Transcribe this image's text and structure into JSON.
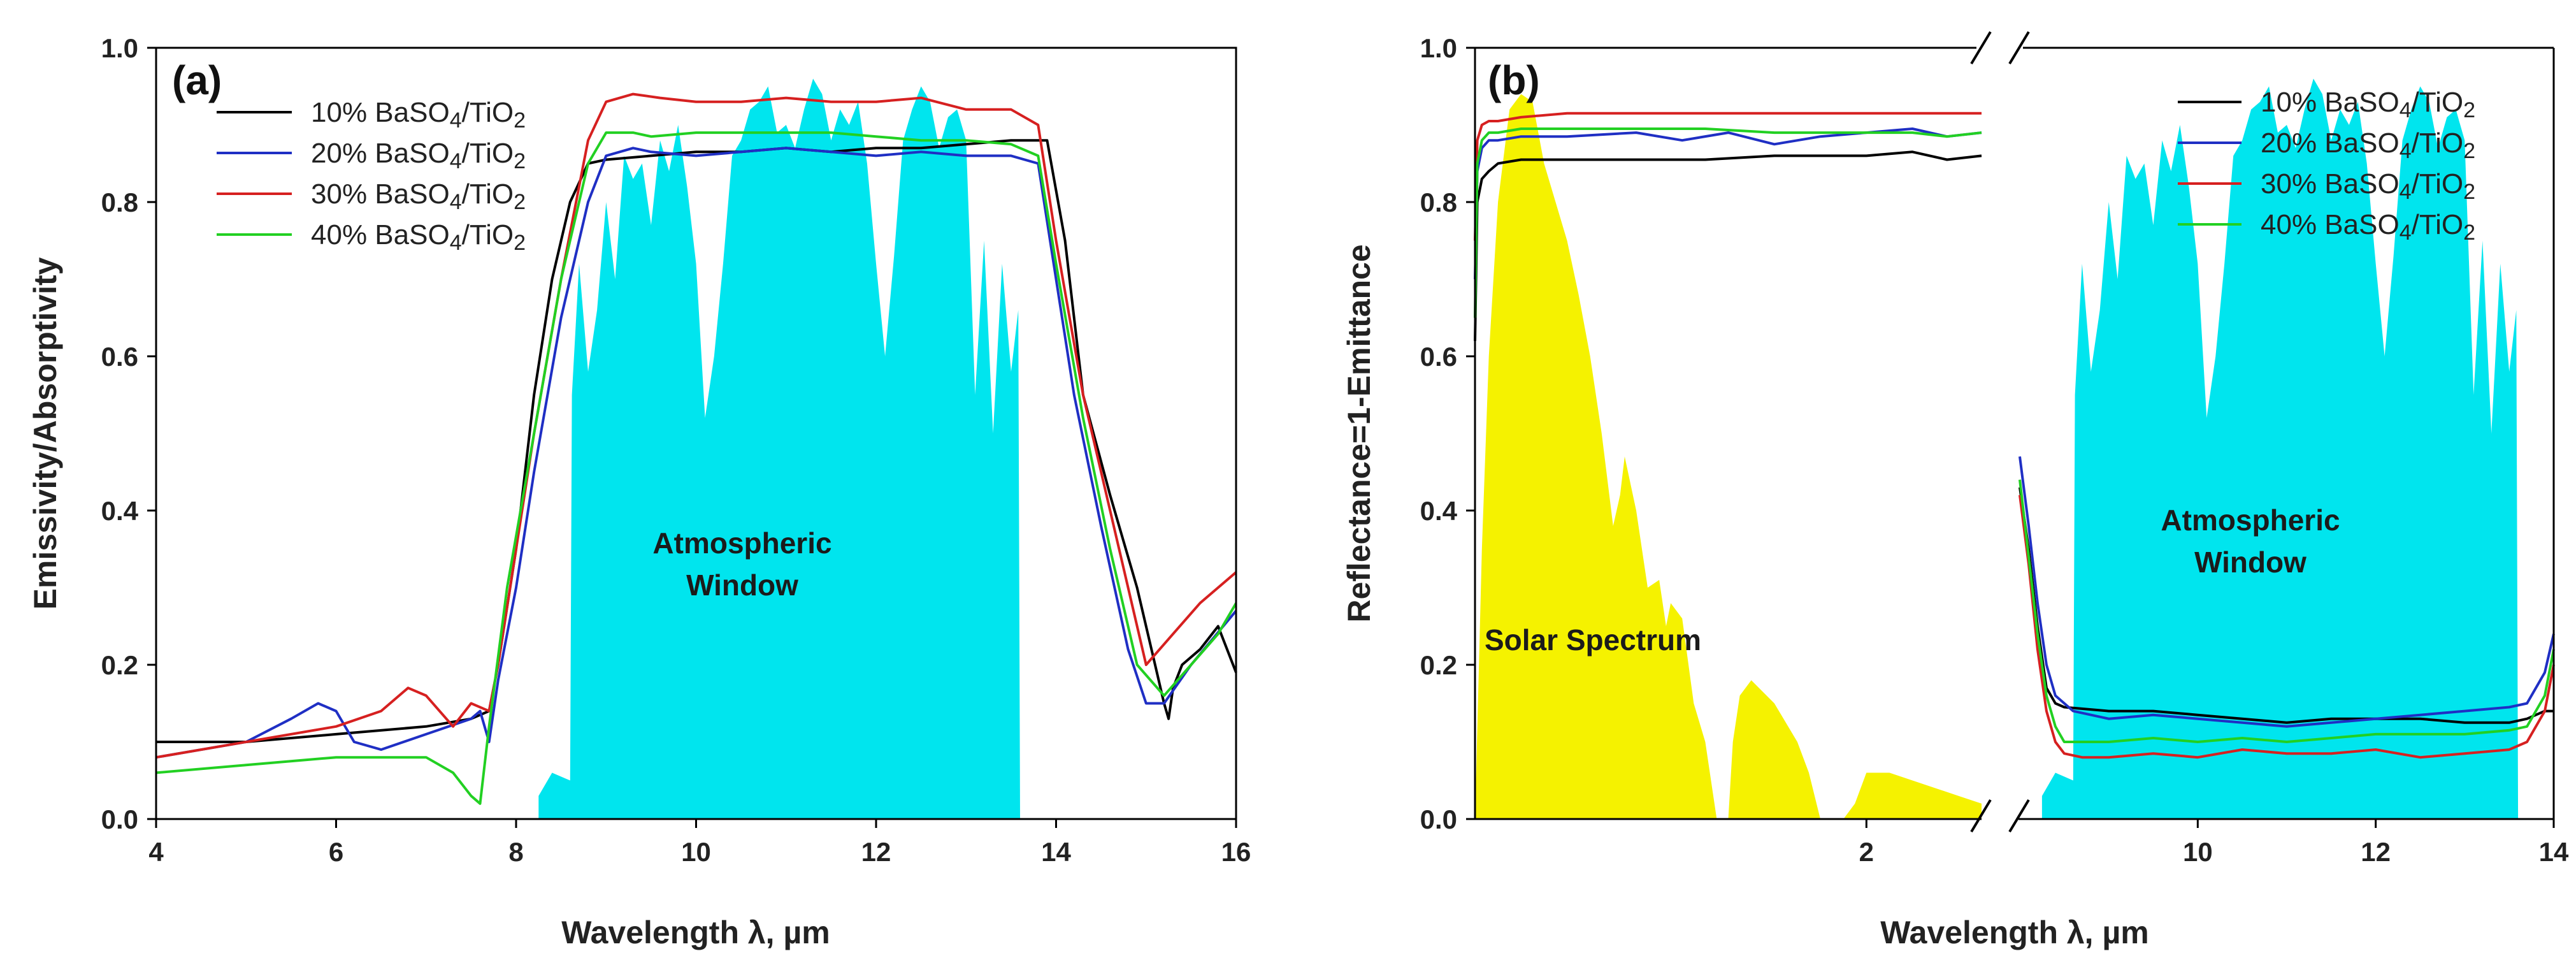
{
  "chart_data": [
    {
      "type": "line",
      "panel_label": "(a)",
      "xlabel": "Wavelength λ, µm",
      "ylabel": "Emissivity/Absorptivity",
      "xlim": [
        4,
        16
      ],
      "ylim": [
        0,
        1
      ],
      "xticks": [
        "4",
        "6",
        "8",
        "10",
        "12",
        "14",
        "16"
      ],
      "yticks": [
        "0.0",
        "0.2",
        "0.4",
        "0.6",
        "0.8",
        "1.0"
      ],
      "annotations": [
        {
          "text_lines": [
            "Atmospheric",
            "Window"
          ],
          "x": 11.1,
          "y": 0.33
        }
      ],
      "legend": {
        "position": "top-left",
        "entries": [
          {
            "label": "10% BaSO4/TiO2",
            "color": "#000000"
          },
          {
            "label": "20% BaSO4/TiO2",
            "color": "#1f2fc4"
          },
          {
            "label": "30% BaSO4/TiO2",
            "color": "#d62020"
          },
          {
            "label": "40% BaSO4/TiO2",
            "color": "#22d022"
          }
        ]
      },
      "atmospheric_window": {
        "color": "#00e5ee",
        "x": [
          8.25,
          8.4,
          8.6,
          8.62,
          8.7,
          8.8,
          8.9,
          9.0,
          9.1,
          9.2,
          9.3,
          9.4,
          9.5,
          9.6,
          9.7,
          9.8,
          9.9,
          10.0,
          10.1,
          10.2,
          10.3,
          10.4,
          10.5,
          10.6,
          10.7,
          10.8,
          10.9,
          11.0,
          11.1,
          11.2,
          11.3,
          11.4,
          11.5,
          11.6,
          11.7,
          11.8,
          11.9,
          12.0,
          12.1,
          12.2,
          12.3,
          12.4,
          12.5,
          12.6,
          12.7,
          12.8,
          12.9,
          13.0,
          13.1,
          13.2,
          13.3,
          13.4,
          13.5,
          13.58,
          13.6
        ],
        "y": [
          0.03,
          0.06,
          0.05,
          0.55,
          0.72,
          0.58,
          0.66,
          0.8,
          0.7,
          0.86,
          0.83,
          0.85,
          0.77,
          0.88,
          0.84,
          0.9,
          0.82,
          0.72,
          0.52,
          0.6,
          0.72,
          0.86,
          0.88,
          0.92,
          0.93,
          0.95,
          0.89,
          0.9,
          0.87,
          0.92,
          0.96,
          0.94,
          0.88,
          0.92,
          0.9,
          0.93,
          0.85,
          0.72,
          0.6,
          0.73,
          0.88,
          0.92,
          0.95,
          0.93,
          0.87,
          0.91,
          0.92,
          0.88,
          0.55,
          0.75,
          0.5,
          0.72,
          0.58,
          0.66,
          0.0
        ]
      },
      "series": [
        {
          "name": "10% BaSO4/TiO2",
          "color": "#000000",
          "x": [
            4,
            5,
            6,
            7,
            7.5,
            7.7,
            7.8,
            8.0,
            8.2,
            8.4,
            8.6,
            8.8,
            9.0,
            9.5,
            10,
            10.5,
            11,
            11.5,
            12,
            12.5,
            13,
            13.5,
            13.9,
            14.1,
            14.3,
            14.6,
            14.9,
            15.1,
            15.2,
            15.25,
            15.3,
            15.4,
            15.6,
            15.8,
            16
          ],
          "y": [
            0.1,
            0.1,
            0.11,
            0.12,
            0.13,
            0.14,
            0.2,
            0.35,
            0.55,
            0.7,
            0.8,
            0.85,
            0.855,
            0.86,
            0.865,
            0.865,
            0.87,
            0.865,
            0.87,
            0.87,
            0.875,
            0.88,
            0.88,
            0.75,
            0.55,
            0.42,
            0.3,
            0.2,
            0.15,
            0.13,
            0.17,
            0.2,
            0.22,
            0.25,
            0.19
          ]
        },
        {
          "name": "20% BaSO4/TiO2",
          "color": "#1f2fc4",
          "x": [
            4,
            5,
            5.5,
            5.8,
            6.0,
            6.2,
            6.5,
            7.0,
            7.5,
            7.6,
            7.7,
            7.8,
            8.0,
            8.2,
            8.5,
            8.8,
            9.0,
            9.3,
            9.5,
            10,
            10.5,
            11,
            11.5,
            12,
            12.5,
            13,
            13.5,
            13.8,
            14.0,
            14.2,
            14.5,
            14.8,
            15.0,
            15.2,
            15.5,
            16
          ],
          "y": [
            0.08,
            0.1,
            0.13,
            0.15,
            0.14,
            0.1,
            0.09,
            0.11,
            0.13,
            0.14,
            0.1,
            0.18,
            0.3,
            0.45,
            0.65,
            0.8,
            0.86,
            0.87,
            0.865,
            0.86,
            0.865,
            0.87,
            0.865,
            0.86,
            0.865,
            0.86,
            0.86,
            0.85,
            0.7,
            0.55,
            0.38,
            0.22,
            0.15,
            0.15,
            0.2,
            0.27
          ]
        },
        {
          "name": "30% BaSO4/TiO2",
          "color": "#d62020",
          "x": [
            4,
            5,
            6,
            6.5,
            6.8,
            7.0,
            7.3,
            7.5,
            7.7,
            7.8,
            8.0,
            8.2,
            8.5,
            8.8,
            9.0,
            9.3,
            9.6,
            10,
            10.5,
            11,
            11.5,
            12,
            12.5,
            13,
            13.5,
            13.8,
            14.0,
            14.3,
            14.6,
            15.0,
            15.3,
            15.6,
            16
          ],
          "y": [
            0.08,
            0.1,
            0.12,
            0.14,
            0.17,
            0.16,
            0.12,
            0.15,
            0.14,
            0.2,
            0.35,
            0.5,
            0.7,
            0.88,
            0.93,
            0.94,
            0.935,
            0.93,
            0.93,
            0.935,
            0.93,
            0.93,
            0.935,
            0.92,
            0.92,
            0.9,
            0.75,
            0.55,
            0.4,
            0.2,
            0.24,
            0.28,
            0.32
          ]
        },
        {
          "name": "40% BaSO4/TiO2",
          "color": "#22d022",
          "x": [
            4,
            5,
            6,
            7,
            7.3,
            7.5,
            7.6,
            7.7,
            7.9,
            8.2,
            8.5,
            8.8,
            9.0,
            9.3,
            9.5,
            10,
            10.5,
            11,
            11.5,
            12,
            12.5,
            13,
            13.5,
            13.8,
            14.0,
            14.3,
            14.6,
            14.9,
            15.2,
            15.5,
            15.8,
            16
          ],
          "y": [
            0.06,
            0.07,
            0.08,
            0.08,
            0.06,
            0.03,
            0.02,
            0.12,
            0.3,
            0.5,
            0.7,
            0.85,
            0.89,
            0.89,
            0.885,
            0.89,
            0.89,
            0.89,
            0.89,
            0.885,
            0.88,
            0.88,
            0.875,
            0.86,
            0.72,
            0.52,
            0.35,
            0.2,
            0.16,
            0.2,
            0.24,
            0.28
          ]
        }
      ]
    },
    {
      "type": "line",
      "panel_label": "(b)",
      "xlabel": "Wavelength λ, µm",
      "ylabel": "Reflectance=1-Emittance",
      "ylim": [
        0,
        1
      ],
      "yticks": [
        "0.0",
        "0.2",
        "0.4",
        "0.6",
        "0.8",
        "1.0"
      ],
      "broken_x_axis": true,
      "x_segments": [
        {
          "range": [
            0.3,
            2.5
          ],
          "ticks": [
            "2"
          ]
        },
        {
          "range": [
            8,
            14
          ],
          "ticks": [
            "10",
            "12",
            "14"
          ]
        }
      ],
      "annotations": [
        {
          "text_lines": [
            "Solar Spectrum"
          ],
          "segment": 0,
          "x": 0.95,
          "y": 0.23
        },
        {
          "text_lines": [
            "Atmospheric",
            "Window"
          ],
          "segment": 1,
          "x": 11.1,
          "y": 0.38
        }
      ],
      "legend": {
        "position": "top-right",
        "entries": [
          {
            "label": "10% BaSO4/TiO2",
            "color": "#000000"
          },
          {
            "label": "20% BaSO4/TiO2",
            "color": "#1f2fc4"
          },
          {
            "label": "30% BaSO4/TiO2",
            "color": "#d62020"
          },
          {
            "label": "40% BaSO4/TiO2",
            "color": "#22d022"
          }
        ]
      },
      "solar_spectrum": {
        "color": "#f5f200",
        "segment": 0,
        "x": [
          0.3,
          0.33,
          0.36,
          0.4,
          0.45,
          0.5,
          0.55,
          0.6,
          0.7,
          0.75,
          0.8,
          0.85,
          0.9,
          0.93,
          0.95,
          1.0,
          1.05,
          1.1,
          1.13,
          1.15,
          1.2,
          1.25,
          1.3,
          1.35,
          1.36,
          1.4,
          1.42,
          1.45,
          1.5,
          1.6,
          1.7,
          1.75,
          1.8,
          1.82,
          1.9,
          1.95,
          2.0,
          2.1,
          2.2,
          2.3,
          2.4,
          2.5
        ],
        "y": [
          0.0,
          0.35,
          0.6,
          0.8,
          0.92,
          0.94,
          0.93,
          0.85,
          0.75,
          0.68,
          0.6,
          0.5,
          0.38,
          0.42,
          0.47,
          0.4,
          0.3,
          0.31,
          0.25,
          0.28,
          0.26,
          0.15,
          0.1,
          0.0,
          0.0,
          0.0,
          0.1,
          0.16,
          0.18,
          0.15,
          0.1,
          0.06,
          0.0,
          0.0,
          0.0,
          0.02,
          0.06,
          0.06,
          0.05,
          0.04,
          0.03,
          0.02
        ]
      },
      "atmospheric_window": {
        "color": "#00e5ee",
        "segment": 1,
        "x": [
          8.25,
          8.4,
          8.6,
          8.62,
          8.7,
          8.8,
          8.9,
          9.0,
          9.1,
          9.2,
          9.3,
          9.4,
          9.5,
          9.6,
          9.7,
          9.8,
          9.9,
          10.0,
          10.1,
          10.2,
          10.3,
          10.4,
          10.5,
          10.6,
          10.7,
          10.8,
          10.9,
          11.0,
          11.1,
          11.2,
          11.3,
          11.4,
          11.5,
          11.6,
          11.7,
          11.8,
          11.9,
          12.0,
          12.1,
          12.2,
          12.3,
          12.4,
          12.5,
          12.6,
          12.7,
          12.8,
          12.9,
          13.0,
          13.1,
          13.2,
          13.3,
          13.4,
          13.5,
          13.58,
          13.6
        ],
        "y": [
          0.03,
          0.06,
          0.05,
          0.55,
          0.72,
          0.58,
          0.66,
          0.8,
          0.7,
          0.86,
          0.83,
          0.85,
          0.77,
          0.88,
          0.84,
          0.9,
          0.82,
          0.72,
          0.52,
          0.6,
          0.72,
          0.86,
          0.88,
          0.92,
          0.93,
          0.95,
          0.89,
          0.9,
          0.87,
          0.92,
          0.96,
          0.94,
          0.88,
          0.92,
          0.9,
          0.93,
          0.85,
          0.72,
          0.6,
          0.73,
          0.88,
          0.92,
          0.95,
          0.93,
          0.87,
          0.91,
          0.92,
          0.88,
          0.55,
          0.75,
          0.5,
          0.72,
          0.58,
          0.66,
          0.0
        ]
      },
      "series": [
        {
          "name": "10% BaSO4/TiO2",
          "color": "#000000",
          "seg0": {
            "x": [
              0.3,
              0.31,
              0.33,
              0.36,
              0.4,
              0.5,
              0.7,
              1.0,
              1.3,
              1.6,
              1.8,
              2.0,
              2.2,
              2.35,
              2.5
            ],
            "y": [
              0.62,
              0.8,
              0.83,
              0.84,
              0.85,
              0.855,
              0.855,
              0.855,
              0.855,
              0.86,
              0.86,
              0.86,
              0.865,
              0.855,
              0.86
            ]
          },
          "seg1": {
            "x": [
              8.0,
              8.1,
              8.2,
              8.3,
              8.4,
              8.5,
              9.0,
              9.5,
              10.0,
              10.5,
              11.0,
              11.5,
              12.0,
              12.5,
              13.0,
              13.5,
              13.7,
              13.9,
              14.0
            ],
            "y": [
              0.43,
              0.35,
              0.25,
              0.17,
              0.15,
              0.145,
              0.14,
              0.14,
              0.135,
              0.13,
              0.125,
              0.13,
              0.13,
              0.13,
              0.125,
              0.125,
              0.13,
              0.14,
              0.14
            ]
          }
        },
        {
          "name": "20% BaSO4/TiO2",
          "color": "#1f2fc4",
          "seg0": {
            "x": [
              0.3,
              0.31,
              0.33,
              0.36,
              0.4,
              0.5,
              0.7,
              1.0,
              1.2,
              1.4,
              1.6,
              1.8,
              2.0,
              2.2,
              2.35,
              2.5
            ],
            "y": [
              0.7,
              0.84,
              0.87,
              0.88,
              0.88,
              0.885,
              0.885,
              0.89,
              0.88,
              0.89,
              0.875,
              0.885,
              0.89,
              0.895,
              0.885,
              0.89
            ]
          },
          "seg1": {
            "x": [
              8.0,
              8.1,
              8.2,
              8.3,
              8.4,
              8.6,
              9.0,
              9.5,
              10.0,
              10.5,
              11.0,
              11.5,
              12.0,
              12.5,
              13.0,
              13.5,
              13.7,
              13.9,
              14.0
            ],
            "y": [
              0.47,
              0.38,
              0.28,
              0.2,
              0.16,
              0.14,
              0.13,
              0.135,
              0.13,
              0.125,
              0.12,
              0.125,
              0.13,
              0.135,
              0.14,
              0.145,
              0.15,
              0.19,
              0.24
            ]
          }
        },
        {
          "name": "30% BaSO4/TiO2",
          "color": "#d62020",
          "seg0": {
            "x": [
              0.3,
              0.31,
              0.33,
              0.36,
              0.4,
              0.5,
              0.7,
              1.0,
              1.3,
              1.6,
              1.9,
              2.2,
              2.35,
              2.5
            ],
            "y": [
              0.75,
              0.88,
              0.9,
              0.905,
              0.905,
              0.91,
              0.915,
              0.915,
              0.915,
              0.915,
              0.915,
              0.915,
              0.915,
              0.915
            ]
          },
          "seg1": {
            "x": [
              8.0,
              8.1,
              8.2,
              8.3,
              8.4,
              8.5,
              8.7,
              9.0,
              9.5,
              10.0,
              10.5,
              11.0,
              11.5,
              12.0,
              12.5,
              13.0,
              13.5,
              13.7,
              13.9,
              14.0
            ],
            "y": [
              0.42,
              0.33,
              0.22,
              0.14,
              0.1,
              0.085,
              0.08,
              0.08,
              0.085,
              0.08,
              0.09,
              0.085,
              0.085,
              0.09,
              0.08,
              0.085,
              0.09,
              0.1,
              0.14,
              0.2
            ]
          }
        },
        {
          "name": "40% BaSO4/TiO2",
          "color": "#22d022",
          "seg0": {
            "x": [
              0.3,
              0.31,
              0.33,
              0.36,
              0.4,
              0.5,
              0.7,
              1.0,
              1.3,
              1.6,
              1.9,
              2.2,
              2.35,
              2.5
            ],
            "y": [
              0.65,
              0.85,
              0.88,
              0.89,
              0.89,
              0.895,
              0.895,
              0.895,
              0.895,
              0.89,
              0.89,
              0.89,
              0.885,
              0.89
            ]
          },
          "seg1": {
            "x": [
              8.0,
              8.1,
              8.2,
              8.3,
              8.4,
              8.5,
              8.7,
              9.0,
              9.5,
              10.0,
              10.5,
              11.0,
              11.5,
              12.0,
              12.5,
              13.0,
              13.5,
              13.7,
              13.9,
              14.0
            ],
            "y": [
              0.44,
              0.34,
              0.24,
              0.16,
              0.12,
              0.1,
              0.1,
              0.1,
              0.105,
              0.1,
              0.105,
              0.1,
              0.105,
              0.11,
              0.11,
              0.11,
              0.115,
              0.12,
              0.16,
              0.22
            ]
          }
        }
      ]
    }
  ]
}
